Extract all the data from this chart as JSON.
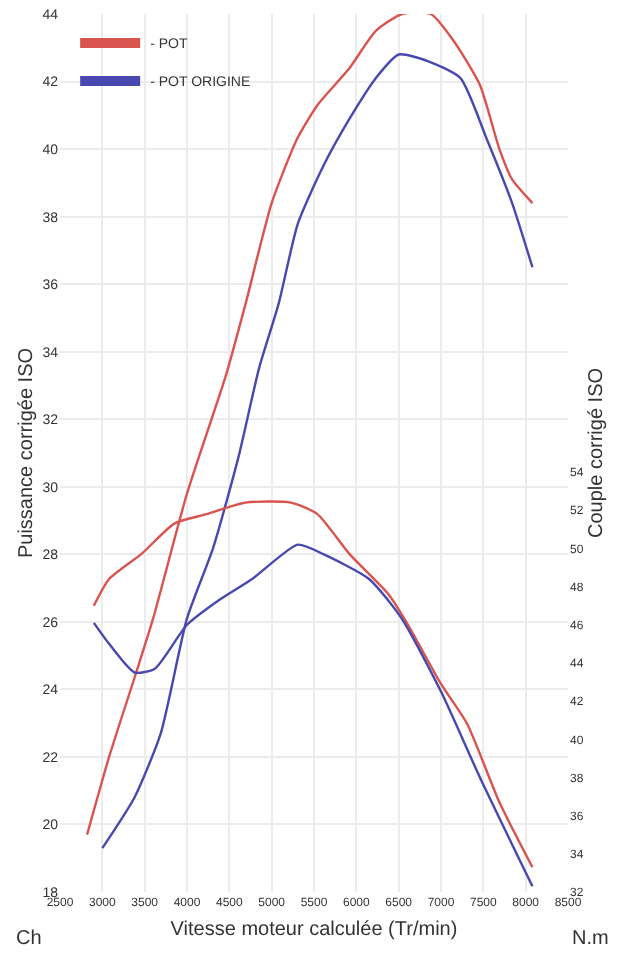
{
  "chart_data": {
    "type": "line",
    "xlabel": "Vitesse moteur calculée (Tr/min)",
    "ylabel": "Puissance corrigée ISO",
    "y2label": "Couple corrigé ISO",
    "annotations": [
      "Ch",
      "N.m"
    ],
    "xlim": [
      2500,
      8500
    ],
    "xticks": [
      2500,
      3000,
      3500,
      4000,
      4500,
      5000,
      5500,
      6000,
      6500,
      7000,
      7500,
      8000,
      8500
    ],
    "ylim": [
      18,
      44
    ],
    "yticks": [
      18,
      20,
      22,
      24,
      26,
      28,
      30,
      32,
      34,
      36,
      38,
      40,
      42,
      44
    ],
    "y2lim": [
      32,
      78
    ],
    "y2ticks": [
      32,
      34,
      36,
      38,
      40,
      42,
      44,
      46,
      48,
      50,
      52,
      54
    ],
    "grid": true,
    "legend": "top left",
    "line_style": "solid",
    "series": [
      {
        "name": "- POT",
        "color": "#d9534f",
        "x": [
          2820,
          3080,
          3400,
          3600,
          4000,
          4460,
          4690,
          5000,
          5300,
          5540,
          5920,
          6230,
          6540,
          6880,
          7150,
          7460,
          7690,
          7840,
          8080
        ],
        "values": [
          19.7,
          22.0,
          24.5,
          26.1,
          29.8,
          33.3,
          35.4,
          38.4,
          40.3,
          41.3,
          42.4,
          43.5,
          44.0,
          44.0,
          43.2,
          41.9,
          40.0,
          39.1,
          38.4
        ]
      },
      {
        "name": "- POT ORIGINE",
        "color": "#4848b0",
        "x": [
          3000,
          3380,
          3690,
          4000,
          4310,
          4610,
          4850,
          5080,
          5310,
          5610,
          5920,
          6230,
          6500,
          6850,
          7230,
          7540,
          7840,
          8080
        ],
        "values": [
          19.3,
          20.8,
          22.7,
          26.1,
          28.2,
          30.9,
          33.5,
          35.4,
          37.8,
          39.5,
          40.9,
          42.1,
          42.8,
          42.6,
          42.1,
          40.3,
          38.4,
          36.5
        ]
      },
      {
        "color": "#d9534f",
        "axis": "y2",
        "x": [
          2900,
          3080,
          3460,
          3850,
          4230,
          4690,
          5230,
          5540,
          5920,
          6380,
          6610,
          7000,
          7310,
          7690,
          8080
        ],
        "values": [
          47.0,
          48.4,
          49.7,
          51.3,
          51.8,
          52.4,
          52.4,
          51.8,
          49.7,
          47.6,
          46.0,
          42.9,
          40.8,
          36.7,
          33.3
        ]
      },
      {
        "color": "#4848b0",
        "axis": "y2",
        "x": [
          2900,
          3080,
          3380,
          3620,
          4000,
          4380,
          4770,
          5310,
          5610,
          6150,
          6540,
          7000,
          7460,
          8080
        ],
        "values": [
          46.1,
          45.0,
          43.5,
          43.7,
          46.0,
          47.3,
          48.4,
          50.2,
          49.7,
          48.4,
          46.3,
          42.5,
          38.0,
          32.3
        ]
      }
    ]
  }
}
